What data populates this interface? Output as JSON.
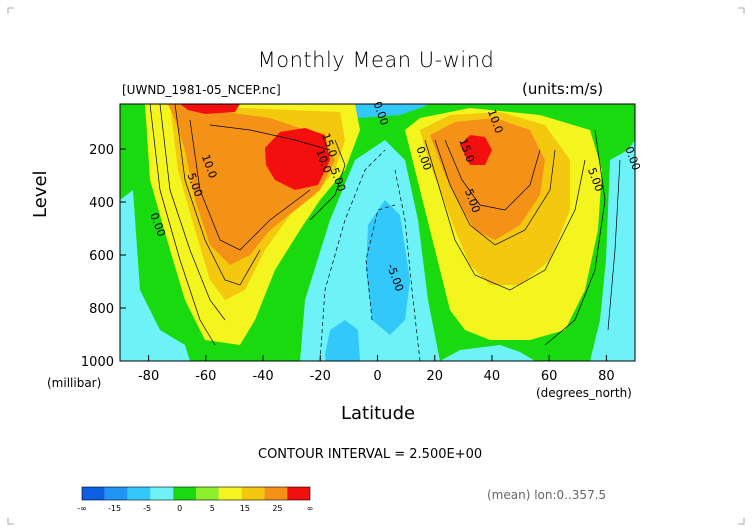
{
  "chart_data": {
    "type": "heatmap",
    "title": "Monthly Mean U-wind",
    "file_label": "[UWND_1981-05_NCEP.nc]",
    "units_label": "(units:m/s)",
    "xlabel": "Latitude",
    "xlabel_unit": "(degrees_north)",
    "ylabel": "Level",
    "ylabel_unit": "(millibar)",
    "xlim": [
      -90,
      90
    ],
    "ylim": [
      1000,
      30
    ],
    "y_scale": "pressure (inverted)",
    "x_ticks": [
      -80,
      -60,
      -40,
      -20,
      0,
      20,
      40,
      60,
      80
    ],
    "x_tick_labels": [
      "-80",
      "-60",
      "-40",
      "-20",
      "0",
      "20",
      "40",
      "60",
      "80"
    ],
    "y_ticks": [
      200,
      400,
      600,
      800,
      1000
    ],
    "y_tick_labels": [
      "200",
      "400",
      "600",
      "800",
      "1000"
    ],
    "contour_interval": "CONTOUR INTERVAL = 2.500E+00",
    "mean_note": "(mean) lon:0..357.5",
    "contour_labels": [
      {
        "text": "10.0",
        "lat": 40,
        "p": 100
      },
      {
        "text": "15.0",
        "lat": 30,
        "p": 210
      },
      {
        "text": "0.00",
        "lat": 15,
        "p": 240
      },
      {
        "text": "5.00",
        "lat": 32,
        "p": 400
      },
      {
        "text": "10.0",
        "lat": -60,
        "p": 270
      },
      {
        "text": "5.00",
        "lat": -65,
        "p": 340
      },
      {
        "text": "0.00",
        "lat": -78,
        "p": 490
      },
      {
        "text": "-5.00",
        "lat": 5,
        "p": 690
      },
      {
        "text": "10.0",
        "lat": -20,
        "p": 250
      },
      {
        "text": "15.0",
        "lat": -18,
        "p": 190
      },
      {
        "text": "5.00",
        "lat": -15,
        "p": 320
      },
      {
        "text": "0.00",
        "lat": 0,
        "p": 70
      },
      {
        "text": "5.00",
        "lat": 75,
        "p": 320
      },
      {
        "text": "0.00",
        "lat": 88,
        "p": 240
      }
    ],
    "colorbar": {
      "colors": [
        "#0b5fe3",
        "#1f95f5",
        "#33c8fa",
        "#6cf2f7",
        "#19d90f",
        "#8df02c",
        "#f4f41f",
        "#f4c80f",
        "#f49117",
        "#f40f0f"
      ],
      "labels": [
        "-∞",
        "-15",
        "-5",
        "0",
        "5",
        "15",
        "25",
        "∞"
      ]
    }
  }
}
